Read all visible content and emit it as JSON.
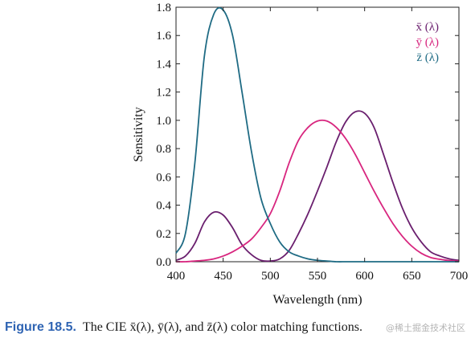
{
  "caption": {
    "figure_label": "Figure 18.5.",
    "text": "The CIE x̄(λ), ȳ(λ), and z̄(λ) color matching functions."
  },
  "watermark": "@稀土掘金技术社区",
  "chart_data": {
    "type": "line",
    "title": "",
    "xlabel": "Wavelength (nm)",
    "ylabel": "Sensitivity",
    "xlim": [
      400,
      700
    ],
    "ylim": [
      0,
      1.8
    ],
    "x_ticks": [
      "400",
      "450",
      "500",
      "550",
      "600",
      "650",
      "700"
    ],
    "y_ticks": [
      "0.0",
      "0.2",
      "0.4",
      "0.6",
      "0.8",
      "1.0",
      "1.2",
      "1.4",
      "1.6",
      "1.8"
    ],
    "grid": false,
    "legend_position": "top-right",
    "x": [
      400,
      410,
      420,
      430,
      440,
      450,
      460,
      470,
      480,
      490,
      500,
      510,
      520,
      530,
      540,
      550,
      560,
      570,
      580,
      590,
      600,
      610,
      620,
      630,
      640,
      650,
      660,
      670,
      680,
      690,
      700
    ],
    "series": [
      {
        "name": "x̄ (λ)",
        "color": "#6a1f6e",
        "values": [
          0.01,
          0.04,
          0.13,
          0.28,
          0.35,
          0.33,
          0.24,
          0.12,
          0.05,
          0.01,
          0.005,
          0.02,
          0.08,
          0.2,
          0.34,
          0.5,
          0.67,
          0.85,
          0.99,
          1.06,
          1.05,
          0.95,
          0.76,
          0.56,
          0.38,
          0.24,
          0.14,
          0.07,
          0.04,
          0.02,
          0.01
        ]
      },
      {
        "name": "ȳ (λ)",
        "color": "#d8267f",
        "values": [
          0.0,
          0.0,
          0.005,
          0.01,
          0.02,
          0.04,
          0.07,
          0.11,
          0.16,
          0.24,
          0.34,
          0.5,
          0.7,
          0.86,
          0.95,
          0.995,
          0.995,
          0.95,
          0.87,
          0.76,
          0.63,
          0.5,
          0.38,
          0.27,
          0.18,
          0.11,
          0.06,
          0.03,
          0.017,
          0.008,
          0.004
        ]
      },
      {
        "name": "z̄ (λ)",
        "color": "#1f6b84",
        "values": [
          0.06,
          0.2,
          0.7,
          1.45,
          1.75,
          1.78,
          1.6,
          1.2,
          0.78,
          0.45,
          0.27,
          0.14,
          0.07,
          0.04,
          0.02,
          0.01,
          0.005,
          0.0,
          0.0,
          0.0,
          0.0,
          0.0,
          0.0,
          0.0,
          0.0,
          0.0,
          0.0,
          0.0,
          0.0,
          0.0,
          0.0
        ]
      }
    ]
  }
}
